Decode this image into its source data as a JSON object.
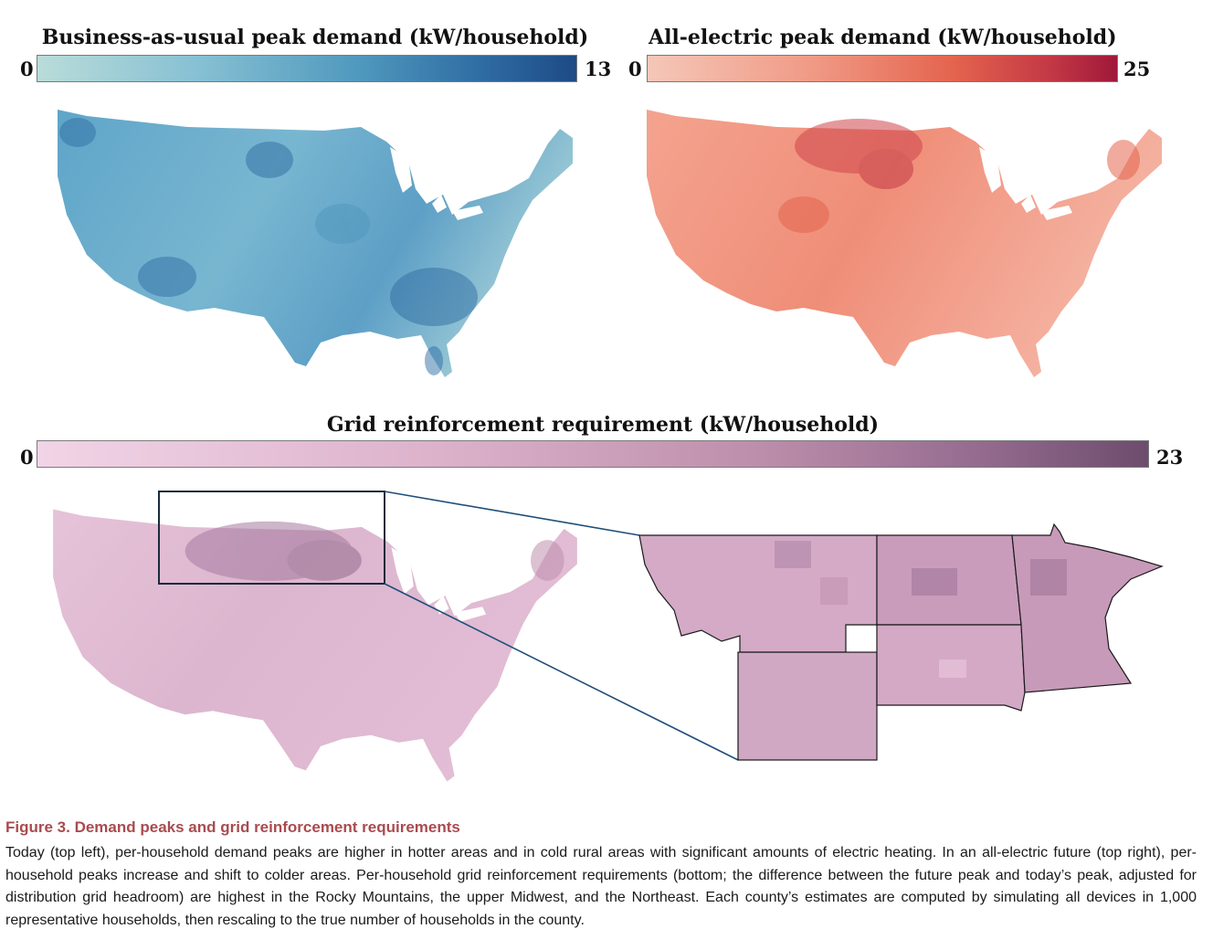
{
  "figure": {
    "panel_top_left": {
      "title": "Business-as-usual peak demand (kW/household)",
      "scale_min": "0",
      "scale_max": "13",
      "color_low": "#b9dcd9",
      "color_high": "#1d4a85"
    },
    "panel_top_right": {
      "title": "All-electric peak demand (kW/household)",
      "scale_min": "0",
      "scale_max": "25",
      "color_low": "#f5c7b8",
      "color_high": "#a0183a"
    },
    "panel_bottom": {
      "title": "Grid reinforcement requirement (kW/household)",
      "scale_min": "0",
      "scale_max": "23",
      "color_low": "#f1d4e6",
      "color_high": "#6d4c6e"
    },
    "inset_callout_color": "#1f4e79"
  },
  "caption": {
    "title": "Figure 3.  Demand peaks and grid reinforcement requirements",
    "body": "Today (top left), per-household demand peaks are higher in hotter areas and in cold rural areas with significant amounts of electric heating. In an all-electric future (top right), per-household peaks increase and shift to colder areas. Per-household grid reinforcement requirements (bottom; the difference between the future peak and today’s peak, adjusted for distribution grid headroom) are highest in the Rocky Mountains, the upper Midwest, and the Northeast. Each county’s estimates are computed by simulating all devices in 1,000 representative households, then rescaling to the true number of households in the county.",
    "title_color": "#a94b4f"
  }
}
